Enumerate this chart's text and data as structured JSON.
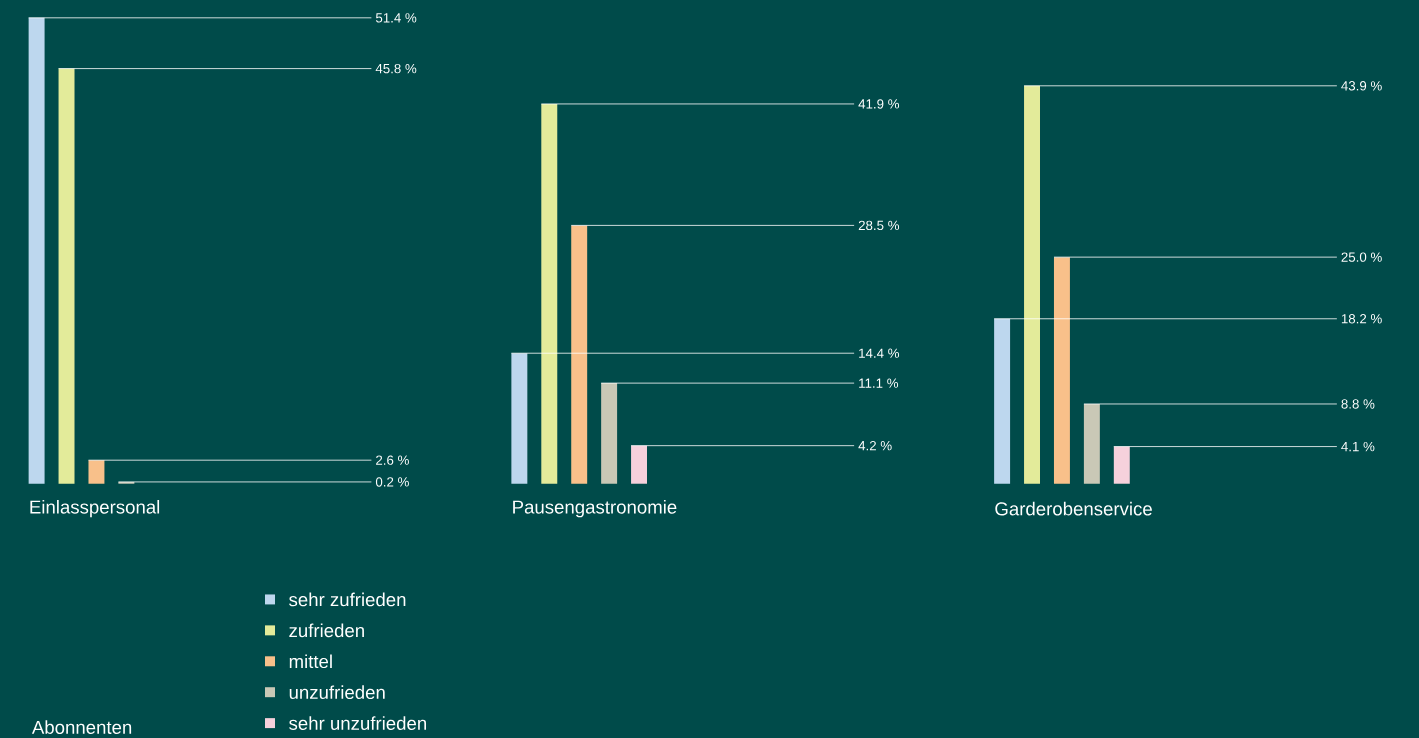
{
  "chart_data": {
    "type": "bar",
    "categories": [
      "Einlasspersonal",
      "Pausengastronomie",
      "Garderobenservice"
    ],
    "series": [
      {
        "name": "sehr zufrieden",
        "color": "#bdd7ee",
        "values": [
          51.4,
          14.4,
          18.2
        ],
        "value_labels": [
          "51.4 %",
          "14.4 %",
          "18.2 %"
        ]
      },
      {
        "name": "zufrieden",
        "color": "#e3eb9a",
        "values": [
          45.8,
          41.9,
          43.9
        ],
        "value_labels": [
          "45.8 %",
          "41.9 %",
          "43.9 %"
        ]
      },
      {
        "name": "mittel",
        "color": "#f8c08a",
        "values": [
          2.6,
          28.5,
          25.0
        ],
        "value_labels": [
          "2.6 %",
          "28.5 %",
          "25.0 %"
        ]
      },
      {
        "name": "unzufrieden",
        "color": "#c9c8b6",
        "values": [
          0.2,
          11.1,
          8.8
        ],
        "value_labels": [
          "0.2 %",
          "11.1 %",
          "8.8 %"
        ]
      },
      {
        "name": "sehr unzufrieden",
        "color": "#f6d1dc",
        "values": [
          null,
          4.2,
          4.1
        ],
        "value_labels": [
          null,
          "4.2 %",
          "4.1 %"
        ]
      }
    ],
    "legend": "bottom",
    "annotations": [
      "Abonnenten"
    ]
  }
}
